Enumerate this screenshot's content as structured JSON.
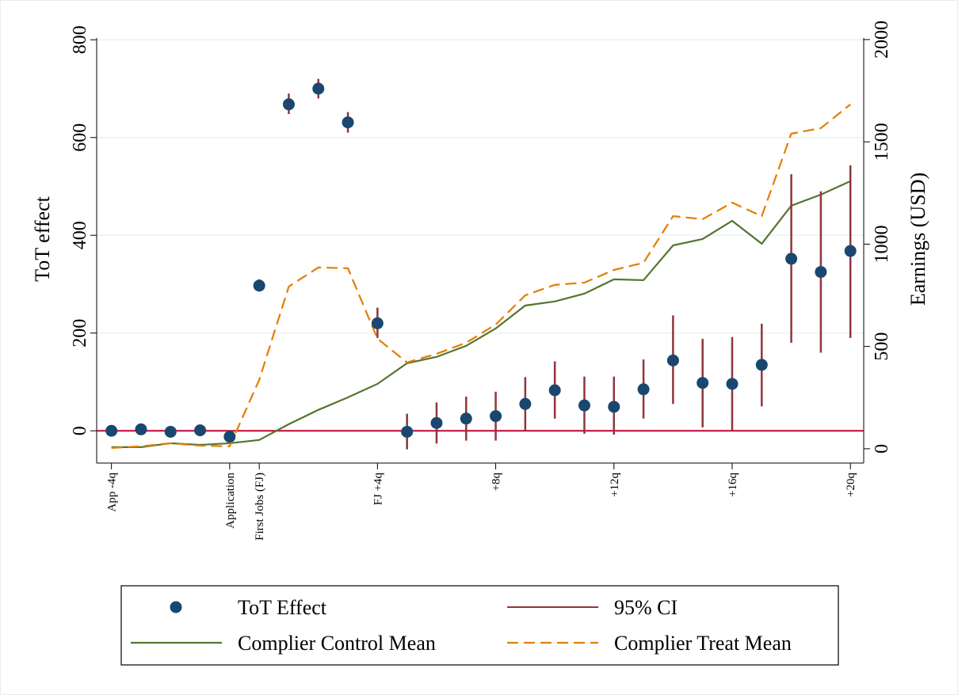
{
  "chart_data": {
    "type": "combo",
    "x_label": null,
    "y_label": "ToT effect",
    "y2_label": "Earnings (USD)",
    "x": [
      -4,
      -3,
      -2,
      -1,
      0,
      1,
      2,
      3,
      4,
      5,
      6,
      7,
      8,
      9,
      10,
      11,
      12,
      13,
      14,
      15,
      16,
      17,
      18,
      19,
      20,
      21
    ],
    "xlim": [
      -4.5,
      21.45
    ],
    "xticks": [
      {
        "value": -4,
        "label": "App -4q"
      },
      {
        "value": 0,
        "label": "Application"
      },
      {
        "value": 1,
        "label": "First Jobs (FJ)"
      },
      {
        "value": 5,
        "label": "FJ +4q"
      },
      {
        "value": 9,
        "label": "+8q"
      },
      {
        "value": 13,
        "label": "+12q"
      },
      {
        "value": 17,
        "label": "+16q"
      },
      {
        "value": 21,
        "label": "+20q"
      }
    ],
    "ylim": [
      -66,
      849
    ],
    "yticks": [
      0,
      200,
      400,
      600,
      800
    ],
    "y2lim": [
      -70,
      2116
    ],
    "y2ticks": [
      0,
      500,
      1000,
      1500,
      2000
    ],
    "grid": true,
    "hline": {
      "value": 0,
      "color": "#c10534"
    },
    "series": [
      {
        "name": "ToT Effect",
        "type": "scatter",
        "color": "#1a476f",
        "values": [
          0,
          3,
          -2,
          1,
          -12,
          297,
          668,
          700,
          631,
          220,
          -2,
          16,
          25,
          30,
          55,
          83,
          52,
          49,
          85,
          144,
          98,
          96,
          135,
          352,
          325,
          368
        ]
      },
      {
        "name": "95% CI",
        "type": "errorbar",
        "color": "#90353b",
        "lower": [
          -5,
          -2,
          -7,
          -4,
          -18,
          285,
          648,
          680,
          610,
          190,
          -38,
          -26,
          -20,
          -20,
          0,
          25,
          -6,
          -8,
          25,
          55,
          7,
          0,
          50,
          180,
          160,
          190
        ],
        "upper": [
          5,
          8,
          3,
          6,
          -6,
          310,
          690,
          720,
          652,
          252,
          35,
          58,
          70,
          80,
          110,
          142,
          111,
          111,
          146,
          236,
          188,
          192,
          219,
          525,
          490,
          543
        ]
      },
      {
        "name": "Complier Control Mean",
        "type": "line",
        "axis": "y2",
        "color": "#55752f",
        "dash": false,
        "values": [
          8,
          8,
          27,
          19,
          27,
          43,
          120,
          190,
          251,
          317,
          418,
          449,
          503,
          588,
          700,
          720,
          758,
          828,
          824,
          994,
          1025,
          1114,
          1002,
          1188,
          1242,
          1308
        ]
      },
      {
        "name": "Complier Treat Mean",
        "type": "line",
        "axis": "y2",
        "color": "#e37e00",
        "dash": true,
        "values": [
          4,
          12,
          27,
          15,
          12,
          337,
          793,
          886,
          882,
          538,
          422,
          464,
          518,
          607,
          750,
          801,
          812,
          874,
          909,
          1137,
          1122,
          1203,
          1137,
          1540,
          1567,
          1683
        ]
      }
    ]
  }
}
